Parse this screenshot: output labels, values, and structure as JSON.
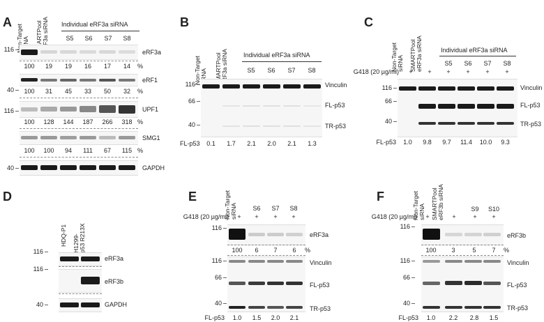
{
  "panels": {
    "A": {
      "label": "A",
      "lanes": [
        "Non-Target\nsiRNA",
        "SMARTPool\neRF3a siRNA",
        "S5",
        "S6",
        "S7",
        "S8"
      ],
      "header": "Individual eRF3a siRNA",
      "mw": [
        "116",
        "40",
        "116",
        "40"
      ],
      "blots": [
        "eRF3a",
        "eRF1",
        "UPF1",
        "SMG1",
        "GAPDH"
      ],
      "quant": [
        [
          "100",
          "19",
          "19",
          "16",
          "17",
          "14",
          "%"
        ],
        [
          "100",
          "31",
          "45",
          "33",
          "50",
          "32",
          "%"
        ],
        [
          "100",
          "128",
          "144",
          "187",
          "266",
          "318",
          "%"
        ],
        [
          "100",
          "100",
          "94",
          "111",
          "67",
          "115",
          "%"
        ]
      ]
    },
    "B": {
      "label": "B",
      "lanes": [
        "Non-Target\nsiRNA",
        "SMARTPool\neRF3a siRNA",
        "S5",
        "S6",
        "S7",
        "S8"
      ],
      "header": "Individual eRF3a siRNA",
      "mw": [
        "116",
        "66",
        "40"
      ],
      "blots": [
        "Vinculin",
        "FL-p53",
        "TR-p53"
      ],
      "quant_label": "FL-p53",
      "quant": [
        "0.1",
        "1.7",
        "2.1",
        "2.0",
        "2.1",
        "1.3"
      ]
    },
    "C": {
      "label": "C",
      "lanes": [
        "Non-Target\nsiRNA",
        "SMARTPool\neRF3a siRNA",
        "S5",
        "S6",
        "S7",
        "S8"
      ],
      "header": "Individual eRF3a siRNA",
      "g418": "G418 (20 µg/ml)",
      "plus": [
        "+",
        "+",
        "+",
        "+",
        "+",
        "+"
      ],
      "mw": [
        "116",
        "66",
        "40"
      ],
      "blots": [
        "Vinculin",
        "FL-p53",
        "TR-p53"
      ],
      "quant_label": "FL-p53",
      "quant": [
        "1.0",
        "9.8",
        "9.7",
        "11.4",
        "10.0",
        "9.3"
      ]
    },
    "D": {
      "label": "D",
      "lanes": [
        "HDQ-P1",
        "H1299-\np53 R213X"
      ],
      "mw": [
        "116",
        "116",
        "40"
      ],
      "blots": [
        "eRF3a",
        "eRF3b",
        "GAPDH"
      ]
    },
    "E": {
      "label": "E",
      "lanes": [
        "Non-Target\nsiRNA",
        "S6",
        "S7",
        "S8"
      ],
      "g418": "G418 (20 µg/ml)",
      "plus": [
        "+",
        "+",
        "+",
        "+"
      ],
      "mw": [
        "116",
        "116",
        "66",
        "40"
      ],
      "blots": [
        "eRF3a",
        "Vinculin",
        "FL-p53",
        "TR-p53"
      ],
      "pct": [
        "100",
        "6",
        "7",
        "6",
        "%"
      ],
      "quant_label": "FL-p53",
      "quant": [
        "1.0",
        "1.5",
        "2.0",
        "2.1"
      ]
    },
    "F": {
      "label": "F",
      "lanes": [
        "Non-Target\nsiRNA",
        "SMARTPool\neRF3b siRNA",
        "S9",
        "S10"
      ],
      "g418": "G418 (20 µg/ml)",
      "plus": [
        "+",
        "+",
        "+",
        "+"
      ],
      "mw": [
        "116",
        "116",
        "66",
        "40"
      ],
      "blots": [
        "eRF3b",
        "Vinculin",
        "FL-p53",
        "TR-p53"
      ],
      "pct": [
        "100",
        "3",
        "5",
        "7",
        "%"
      ],
      "quant_label": "FL-p53",
      "quant": [
        "1.0",
        "2.2",
        "2.8",
        "1.5"
      ]
    }
  }
}
